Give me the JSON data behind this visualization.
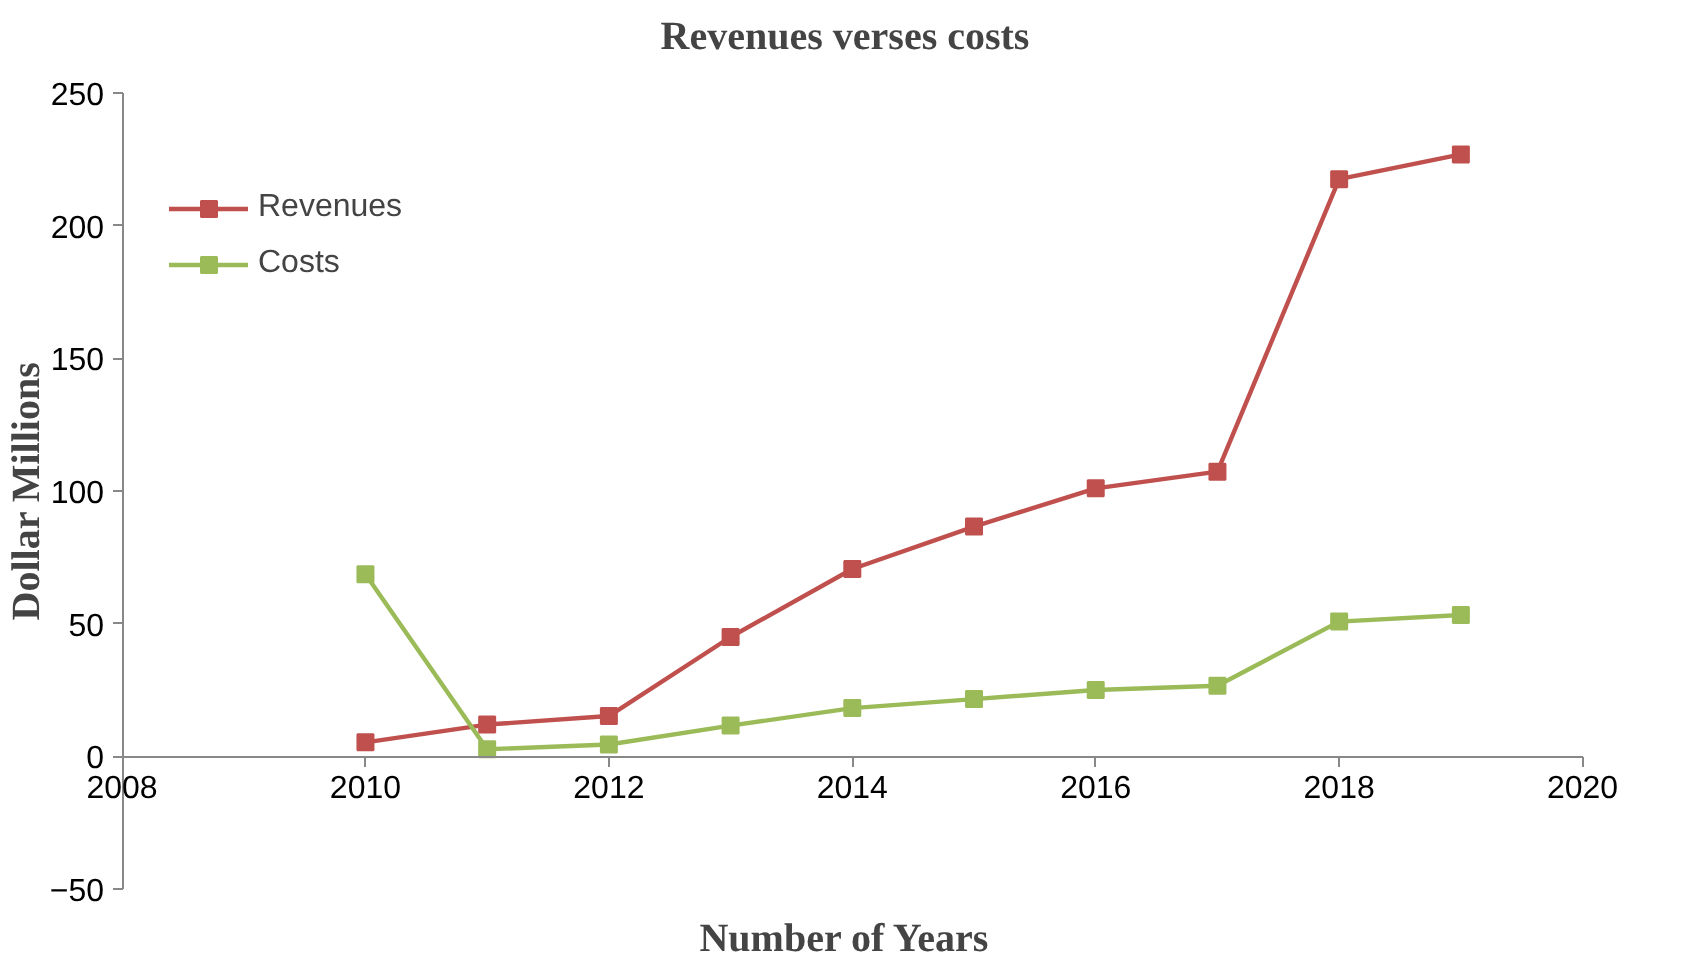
{
  "chart_data": {
    "type": "line",
    "title": "Revenues verses costs",
    "xlabel": "Number of Years",
    "ylabel": "Dollar Millions",
    "x": [
      2010,
      2011,
      2012,
      2013,
      2014,
      2015,
      2016,
      2017,
      2018,
      2019
    ],
    "series": [
      {
        "name": "Revenues",
        "color": "#c0504d",
        "values": [
          5.3,
          12,
          15.2,
          45,
          70.6,
          86.6,
          101,
          107.3,
          217.5,
          226.8
        ]
      },
      {
        "name": "Costs",
        "color": "#9bbb59",
        "values": [
          68.6,
          2.7,
          4.5,
          11.6,
          18.2,
          21.6,
          25,
          26.6,
          50.8,
          53.3
        ]
      }
    ],
    "xlim": [
      2008,
      2020
    ],
    "xticks": [
      2008,
      2010,
      2012,
      2014,
      2016,
      2018,
      2020
    ],
    "ylim": [
      -50,
      250
    ],
    "yticks": [
      -50,
      0,
      50,
      100,
      150,
      200,
      250
    ],
    "grid": false,
    "legend": "top left",
    "marker": "square",
    "line_style": "solid"
  }
}
